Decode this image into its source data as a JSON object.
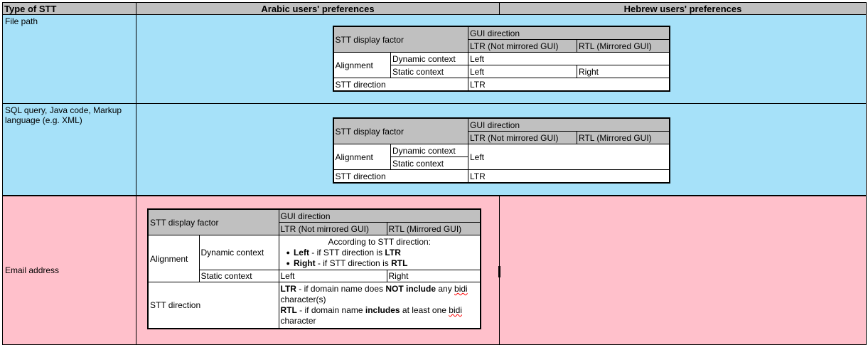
{
  "colors": {
    "header_bg": "#c0c0c0",
    "inner_header_bg": "#c0c0c0",
    "blue_row_bg": "#a6e1f9",
    "pink_row_bg": "#ffc0cb",
    "border": "#000000",
    "misspell_underline": "#ff0000"
  },
  "icons": {
    "bullet": "●"
  },
  "header": {
    "col_type": "Type of STT",
    "col_arabic": "Arabic users' preferences",
    "col_hebrew": "Hebrew users' preferences"
  },
  "shared": {
    "stt_display_factor": "STT display factor",
    "gui_direction": "GUI direction",
    "ltr_gui": "LTR (Not mirrored GUI)",
    "rtl_gui": "RTL (Mirrored GUI)",
    "alignment": "Alignment",
    "dynamic_context": "Dynamic context",
    "static_context": "Static context",
    "stt_direction": "STT direction"
  },
  "rows": {
    "file_path": {
      "label": "File path",
      "dynamic": "Left",
      "static_ltr": "Left",
      "static_rtl": "Right",
      "direction": "LTR"
    },
    "sql_java_markup": {
      "label": "SQL query, Java code, Markup language (e.g. XML)",
      "dynamic": "Left",
      "direction": "LTR"
    },
    "email": {
      "label": "Email address",
      "dynamic_intro": "According to STT direction:",
      "dynamic_bullets": [
        [
          {
            "t": "Left",
            "b": 1
          },
          {
            "t": " - if STT direction is "
          },
          {
            "t": "LTR",
            "b": 1
          }
        ],
        [
          {
            "t": "Right",
            "b": 1
          },
          {
            "t": " - if STT direction is "
          },
          {
            "t": "RTL",
            "b": 1
          }
        ]
      ],
      "static_ltr": "Left",
      "static_rtl": "Right",
      "direction_lines": [
        [
          {
            "t": "LTR",
            "b": 1
          },
          {
            "t": " - if domain name does "
          },
          {
            "t": "NOT include",
            "b": 1
          },
          {
            "t": " any "
          },
          {
            "t": "bidi",
            "sp": 1
          },
          {
            "t": " character(s)"
          }
        ],
        [
          {
            "t": "RTL",
            "b": 1
          },
          {
            "t": " - if domain name "
          },
          {
            "t": "includes",
            "b": 1
          },
          {
            "t": " at least one "
          },
          {
            "t": "bidi",
            "sp": 1
          },
          {
            "t": " character"
          }
        ]
      ]
    }
  }
}
